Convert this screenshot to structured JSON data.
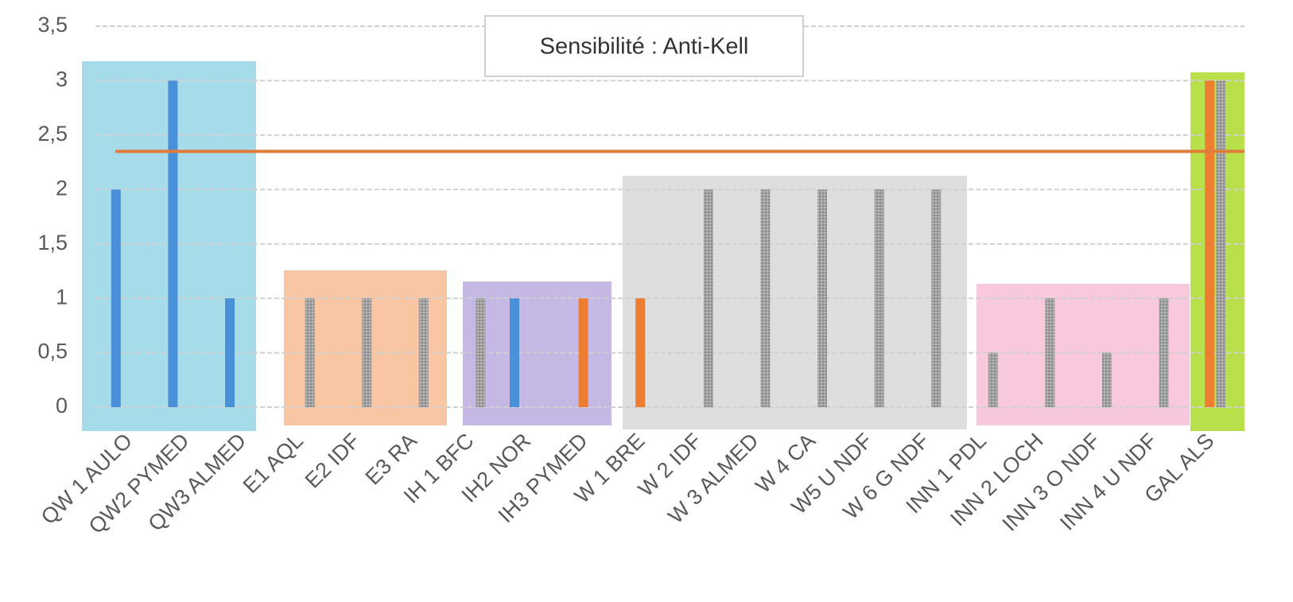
{
  "chart_data": {
    "type": "bar",
    "title": "Sensibilité : Anti-Kell",
    "categories": [
      "QW 1 AULO",
      "QW2 PYMED",
      "QW3 ALMED",
      "E1 AQL",
      "E2 IDF",
      "E3 RA",
      "IH 1 BFC",
      "IH2 NOR",
      "IH3 PYMED",
      "W 1 BRE",
      "W 2 IDF",
      "W 3 ALMED",
      "W 4 CA",
      "W5 U NDF",
      "W 6 G NDF",
      "INN 1 PDL",
      "INN 2 LOCH",
      "INN 3 O NDF",
      "INN 4 U NDF",
      "GAL ALS"
    ],
    "series": [
      {
        "color": "#4a90d9",
        "values": [
          2,
          3,
          1,
          null,
          null,
          null,
          null,
          1,
          null,
          null,
          null,
          null,
          null,
          null,
          null,
          null,
          null,
          null,
          null,
          null
        ]
      },
      {
        "color": "#ed7d31",
        "values": [
          null,
          null,
          null,
          null,
          null,
          null,
          null,
          null,
          1,
          1,
          null,
          null,
          null,
          null,
          null,
          null,
          null,
          null,
          null,
          3
        ]
      },
      {
        "color": "#a0a0a0",
        "values": [
          null,
          null,
          null,
          1,
          1,
          1,
          1,
          null,
          null,
          null,
          2,
          2,
          2,
          2,
          2,
          0.5,
          1,
          0.5,
          1,
          3
        ]
      }
    ],
    "reference_line": {
      "value": 2.35,
      "color": "#e07b39"
    },
    "ylim": [
      0,
      3.5
    ],
    "yticks": [
      0,
      {
        "value": 0.5,
        "label": "0,5"
      },
      1,
      {
        "value": 1.5,
        "label": "1,5"
      },
      2,
      {
        "value": 2.5,
        "label": "2,5"
      },
      3,
      {
        "value": 3.5,
        "label": "3,5"
      }
    ],
    "grid": true
  }
}
